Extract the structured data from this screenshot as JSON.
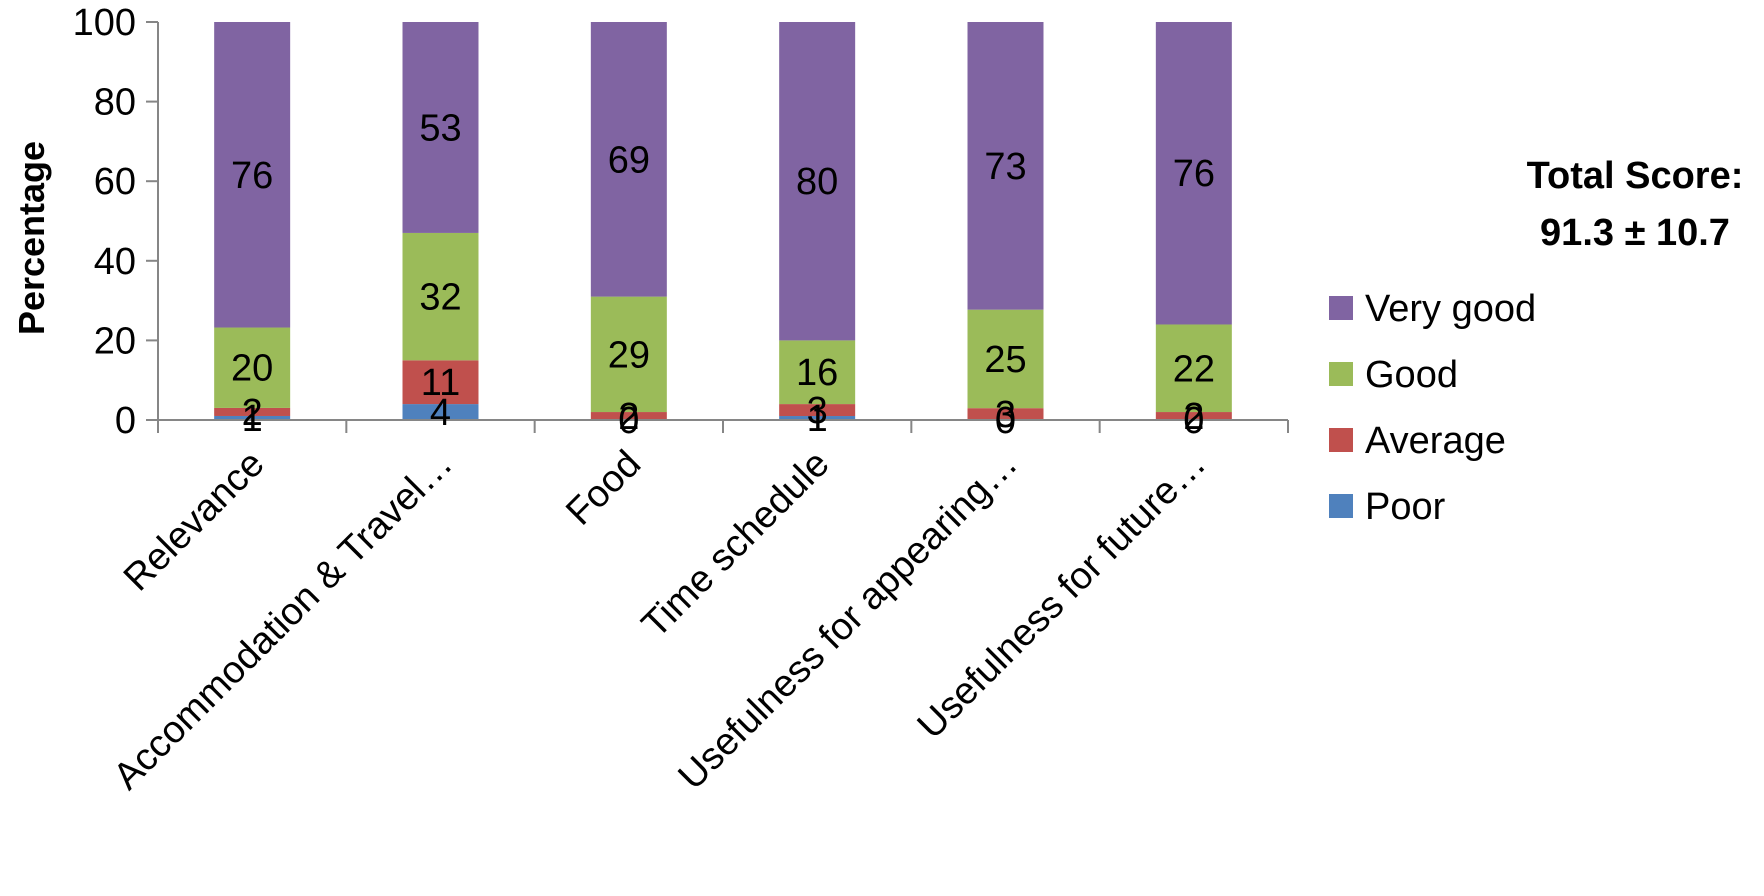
{
  "chart_data": {
    "type": "bar",
    "stacked": true,
    "categories": [
      "Relevance",
      "Accommodation & Travel…",
      "Food",
      "Time schedule",
      "Usefulness for appearing…",
      "Usefulness for future…"
    ],
    "series": [
      {
        "name": "Poor",
        "color": "#4F81BD",
        "values": [
          1,
          4,
          0,
          1,
          0,
          0
        ],
        "labels": [
          "1",
          "4",
          "0",
          "1",
          "0",
          "0"
        ]
      },
      {
        "name": "Average",
        "color": "#C0504D",
        "values": [
          2,
          11,
          2,
          3,
          3,
          2
        ],
        "labels": [
          "2",
          "11",
          "2",
          "3",
          "3",
          "2"
        ]
      },
      {
        "name": "Good",
        "color": "#9BBB59",
        "values": [
          20,
          32,
          29,
          16,
          25,
          22
        ],
        "labels": [
          "20",
          "32",
          "29",
          "16",
          "25",
          "22"
        ]
      },
      {
        "name": "Very good",
        "color": "#8064A2",
        "values": [
          76,
          53,
          69,
          80,
          73,
          76
        ],
        "labels": [
          "76",
          "53",
          "69",
          "80",
          "73",
          "76"
        ]
      }
    ],
    "ylabel": "Percentage",
    "xlabel": "",
    "ylim": [
      0,
      100
    ],
    "yticks": [
      "0",
      "20",
      "40",
      "60",
      "80",
      "100"
    ],
    "grid": false,
    "legend_position": "right",
    "annotation": {
      "line1": "Total Score:",
      "line2": "91.3 ± 10.7"
    }
  }
}
